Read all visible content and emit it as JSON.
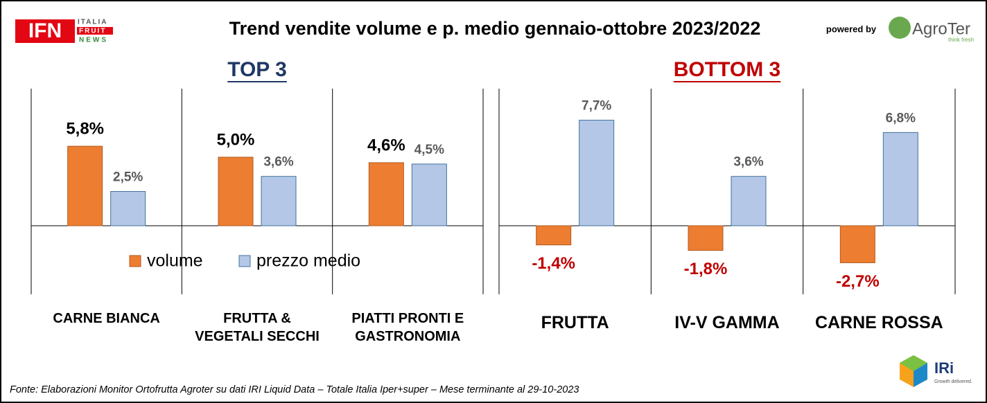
{
  "header": {
    "title": "Trend vendite volume e p. medio gennaio-ottobre 2023/2022",
    "logo_left": {
      "mark": "IFN",
      "lines": [
        "ITALIA",
        "FRUIT",
        "NEWS"
      ]
    },
    "powered_by": "powered by",
    "logo_right": {
      "name": "AgroTer",
      "tagline": "think fresh"
    },
    "logo_bottom": {
      "name": "IRi",
      "tagline": "Growth delivered."
    }
  },
  "chart_data": {
    "type": "bar",
    "groups": [
      "TOP 3",
      "BOTTOM 3"
    ],
    "categories": [
      "CARNE BIANCA",
      "FRUTTA & VEGETALI SECCHI",
      "PIATTI PRONTI E GASTRONOMIA",
      "FRUTTA",
      "IV-V GAMMA",
      "CARNE ROSSA"
    ],
    "series": [
      {
        "name": "volume",
        "color": "#ed7d31",
        "values": [
          5.8,
          5.0,
          4.6,
          -1.4,
          -1.8,
          -2.7
        ],
        "value_labels": [
          "5,8%",
          "5,0%",
          "4,6%",
          "-1,4%",
          "-1,8%",
          "-2,7%"
        ]
      },
      {
        "name": "prezzo medio",
        "color": "#b4c7e7",
        "values": [
          2.5,
          3.6,
          4.5,
          7.7,
          3.6,
          6.8
        ],
        "value_labels": [
          "2,5%",
          "3,6%",
          "4,5%",
          "7,7%",
          "3,6%",
          "6,8%"
        ]
      }
    ],
    "ylim": [
      -5,
      10
    ]
  },
  "footer": {
    "source": "Fonte: Elaborazioni Monitor Ortofrutta Agroter su dati IRI Liquid Data – Totale Italia Iper+super – Mese terminante al 29-10-2023"
  }
}
